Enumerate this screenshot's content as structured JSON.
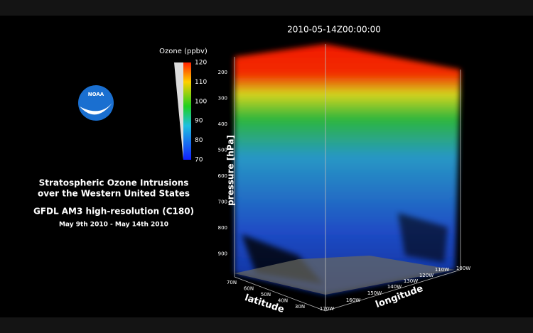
{
  "timestamp": "2010-05-14Z00:00:00",
  "colorbar": {
    "title": "Ozone (ppbv)",
    "ticks": [
      120,
      110,
      100,
      90,
      80,
      70
    ]
  },
  "logo": "NOAA",
  "caption": {
    "title_line1": "Stratospheric Ozone Intrusions",
    "title_line2": "over the Western United States",
    "model": "GFDL AM3 high-resolution (C180)",
    "dates": "May 9th 2010 - May 14th 2010"
  },
  "axes": {
    "pressure_label": "pressure [hPa]",
    "pressure_ticks": [
      200,
      300,
      400,
      500,
      600,
      700,
      800,
      900
    ],
    "latitude_label": "latitude",
    "latitude_ticks": [
      "70N",
      "60N",
      "50N",
      "40N",
      "30N"
    ],
    "longitude_label": "longitude",
    "longitude_ticks": [
      "170W",
      "160W",
      "150W",
      "140W",
      "130W",
      "120W",
      "110W",
      "100W"
    ]
  }
}
